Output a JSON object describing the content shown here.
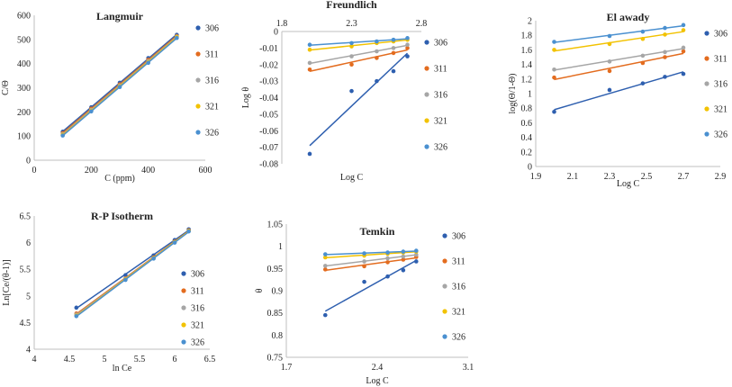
{
  "chart_data": [
    {
      "type": "scatter",
      "title": "Langmuir",
      "xlabel": "C (ppm)",
      "ylabel": "C/Θ",
      "xlim": [
        0,
        600
      ],
      "ylim": [
        0,
        600
      ],
      "xticks": [
        "0",
        "200",
        "400",
        "600"
      ],
      "yticks": [
        "0",
        "100",
        "200",
        "300",
        "400",
        "500",
        "600"
      ],
      "legend": "right",
      "series": [
        {
          "name": "306",
          "color": "#2E5FAF",
          "x": [
            100,
            200,
            300,
            400,
            500
          ],
          "y": [
            118,
            219,
            321,
            423,
            519
          ]
        },
        {
          "name": "311",
          "color": "#E36C1F",
          "x": [
            100,
            200,
            300,
            400,
            500
          ],
          "y": [
            112,
            213,
            314,
            416,
            514
          ]
        },
        {
          "name": "316",
          "color": "#A6A6A6",
          "x": [
            100,
            200,
            300,
            400,
            500
          ],
          "y": [
            108,
            208,
            309,
            410,
            512
          ]
        },
        {
          "name": "321",
          "color": "#F2C200",
          "x": [
            100,
            200,
            300,
            400,
            500
          ],
          "y": [
            105,
            205,
            306,
            406,
            510
          ]
        },
        {
          "name": "326",
          "color": "#4A90D0",
          "x": [
            100,
            200,
            300,
            400,
            500
          ],
          "y": [
            102,
            202,
            303,
            403,
            506
          ]
        }
      ]
    },
    {
      "type": "scatter",
      "title": "Freundlich",
      "xlabel": "Log C",
      "ylabel": "Log θ",
      "xlim": [
        1.8,
        2.8
      ],
      "ylim": [
        -0.08,
        0
      ],
      "xaxis_position": "top",
      "xticks": [
        "1.8",
        "2.3",
        "2.8"
      ],
      "yticks": [
        "0",
        "-0.01",
        "-0.02",
        "-0.03",
        "-0.04",
        "-0.05",
        "-0.06",
        "-0.07",
        "-0.08"
      ],
      "legend": "right",
      "series": [
        {
          "name": "306",
          "color": "#2E5FAF",
          "x": [
            2,
            2.3,
            2.48,
            2.6,
            2.7
          ],
          "y": [
            -0.074,
            -0.036,
            -0.03,
            -0.024,
            -0.015
          ]
        },
        {
          "name": "311",
          "color": "#E36C1F",
          "x": [
            2,
            2.3,
            2.48,
            2.6,
            2.7
          ],
          "y": [
            -0.023,
            -0.02,
            -0.016,
            -0.013,
            -0.01
          ]
        },
        {
          "name": "316",
          "color": "#A6A6A6",
          "x": [
            2,
            2.3,
            2.48,
            2.6,
            2.7
          ],
          "y": [
            -0.019,
            -0.015,
            -0.012,
            -0.01,
            -0.008
          ]
        },
        {
          "name": "321",
          "color": "#F2C200",
          "x": [
            2,
            2.3,
            2.48,
            2.6,
            2.7
          ],
          "y": [
            -0.011,
            -0.009,
            -0.007,
            -0.006,
            -0.005
          ]
        },
        {
          "name": "326",
          "color": "#4A90D0",
          "x": [
            2,
            2.3,
            2.48,
            2.6,
            2.7
          ],
          "y": [
            -0.008,
            -0.007,
            -0.006,
            -0.005,
            -0.004
          ]
        }
      ]
    },
    {
      "type": "scatter",
      "title": "El awady",
      "xlabel": "Log C",
      "ylabel": "log(Θ/1-Θ)",
      "xlim": [
        1.9,
        2.9
      ],
      "ylim": [
        0,
        2
      ],
      "xticks": [
        "1.9",
        "2.1",
        "2.3",
        "2.5",
        "2.7",
        "2.9"
      ],
      "yticks": [
        "0",
        "0.2",
        "0.4",
        "0.6",
        "0.8",
        "1",
        "1.2",
        "1.4",
        "1.6",
        "1.8",
        "2"
      ],
      "legend": "right",
      "series": [
        {
          "name": "306",
          "color": "#2E5FAF",
          "x": [
            2,
            2.3,
            2.48,
            2.6,
            2.7
          ],
          "y": [
            0.75,
            1.05,
            1.14,
            1.23,
            1.27
          ]
        },
        {
          "name": "311",
          "color": "#E36C1F",
          "x": [
            2,
            2.3,
            2.48,
            2.6,
            2.7
          ],
          "y": [
            1.22,
            1.31,
            1.42,
            1.5,
            1.58
          ]
        },
        {
          "name": "316",
          "color": "#A6A6A6",
          "x": [
            2,
            2.3,
            2.48,
            2.6,
            2.7
          ],
          "y": [
            1.33,
            1.44,
            1.52,
            1.57,
            1.63
          ]
        },
        {
          "name": "321",
          "color": "#F2C200",
          "x": [
            2,
            2.3,
            2.48,
            2.6,
            2.7
          ],
          "y": [
            1.6,
            1.68,
            1.75,
            1.81,
            1.87
          ]
        },
        {
          "name": "326",
          "color": "#4A90D0",
          "x": [
            2,
            2.3,
            2.48,
            2.6,
            2.7
          ],
          "y": [
            1.71,
            1.79,
            1.85,
            1.9,
            1.94
          ]
        }
      ]
    },
    {
      "type": "scatter",
      "title": "R-P Isotherm",
      "xlabel": "ln Ce",
      "ylabel": "Ln[Ce/(θ-1)]",
      "xlim": [
        4,
        6.5
      ],
      "ylim": [
        4,
        6.5
      ],
      "xticks": [
        "4",
        "4.5",
        "5",
        "5.5",
        "6",
        "6.5"
      ],
      "yticks": [
        "4",
        "4.5",
        "5",
        "5.5",
        "6",
        "6.5"
      ],
      "legend": "right",
      "series": [
        {
          "name": "306",
          "color": "#2E5FAF",
          "x": [
            4.6,
            5.3,
            5.7,
            6,
            6.2
          ],
          "y": [
            4.78,
            5.39,
            5.76,
            6.05,
            6.25
          ]
        },
        {
          "name": "311",
          "color": "#E36C1F",
          "x": [
            4.6,
            5.3,
            5.7,
            6,
            6.2
          ],
          "y": [
            4.67,
            5.33,
            5.72,
            6.02,
            6.23
          ]
        },
        {
          "name": "316",
          "color": "#A6A6A6",
          "x": [
            4.6,
            5.3,
            5.7,
            6,
            6.2
          ],
          "y": [
            4.65,
            5.32,
            5.71,
            6.01,
            6.22
          ]
        },
        {
          "name": "321",
          "color": "#F2C200",
          "x": [
            4.6,
            5.3,
            5.7,
            6,
            6.2
          ],
          "y": [
            4.63,
            5.31,
            5.71,
            6.01,
            6.22
          ]
        },
        {
          "name": "326",
          "color": "#4A90D0",
          "x": [
            4.6,
            5.3,
            5.7,
            6,
            6.2
          ],
          "y": [
            4.62,
            5.3,
            5.7,
            6,
            6.21
          ]
        }
      ]
    },
    {
      "type": "scatter",
      "title": "Temkin",
      "xlabel": "Log C",
      "ylabel": "θ",
      "xlim": [
        1.7,
        3.1
      ],
      "ylim": [
        0.75,
        1.05
      ],
      "xticks": [
        "1.7",
        "2.4",
        "3.1"
      ],
      "yticks": [
        "0.75",
        "0.8",
        "0.85",
        "0.9",
        "0.95",
        "1",
        "1.05"
      ],
      "legend": "right",
      "series": [
        {
          "name": "306",
          "color": "#2E5FAF",
          "x": [
            2,
            2.3,
            2.48,
            2.6,
            2.7
          ],
          "y": [
            0.845,
            0.92,
            0.932,
            0.946,
            0.966
          ]
        },
        {
          "name": "311",
          "color": "#E36C1F",
          "x": [
            2,
            2.3,
            2.48,
            2.6,
            2.7
          ],
          "y": [
            0.948,
            0.955,
            0.964,
            0.97,
            0.976
          ]
        },
        {
          "name": "316",
          "color": "#A6A6A6",
          "x": [
            2,
            2.3,
            2.48,
            2.6,
            2.7
          ],
          "y": [
            0.956,
            0.966,
            0.973,
            0.977,
            0.981
          ]
        },
        {
          "name": "321",
          "color": "#F2C200",
          "x": [
            2,
            2.3,
            2.48,
            2.6,
            2.7
          ],
          "y": [
            0.975,
            0.979,
            0.983,
            0.986,
            0.988
          ]
        },
        {
          "name": "326",
          "color": "#4A90D0",
          "x": [
            2,
            2.3,
            2.48,
            2.6,
            2.7
          ],
          "y": [
            0.982,
            0.984,
            0.986,
            0.988,
            0.99
          ]
        }
      ]
    }
  ]
}
